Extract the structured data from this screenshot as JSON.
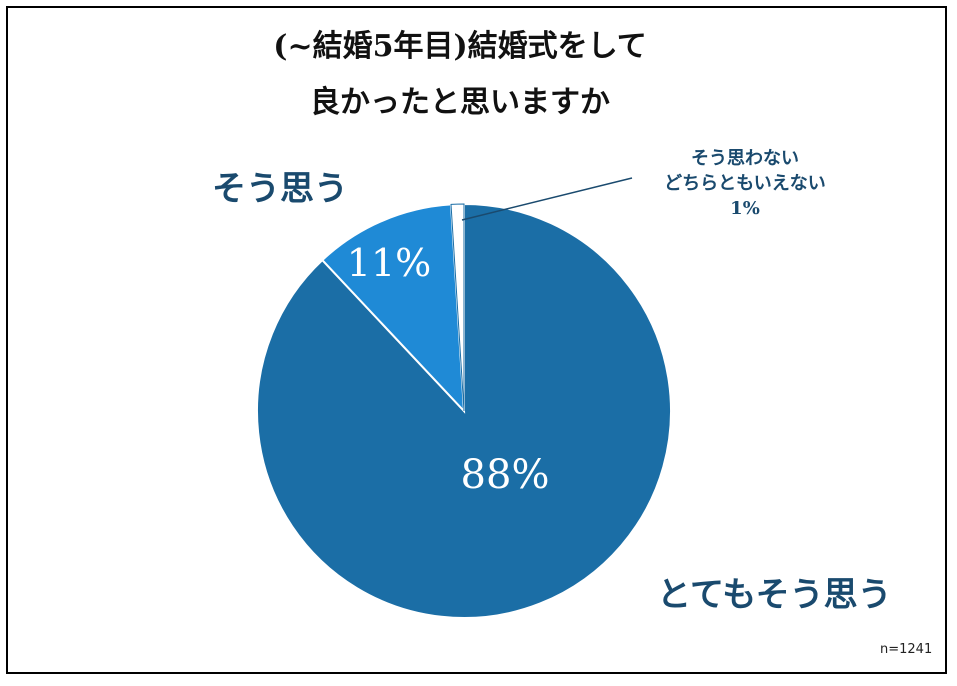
{
  "title_lines": [
    "(~結婚5年目)結婚式をして",
    "良かったと思いますか"
  ],
  "note": "n=1241",
  "chart_data": {
    "type": "pie",
    "slices": [
      {
        "name": "とてもそう思う",
        "value": 88,
        "label": "88%",
        "color": "#1b6ea6"
      },
      {
        "name": "そう思わない\nどちらともいえない",
        "value": 1,
        "label": "1%",
        "color": "#ffffff"
      },
      {
        "name": "そう思う",
        "value": 11,
        "label": "11%",
        "color": "#1f8ad6"
      }
    ],
    "slice_order_clockwise_from_top": [
      "とてもそう思う",
      "そう思う",
      "そう思わない\nどちらともいえない"
    ],
    "category_labels": {
      "totemo": "とてもそう思う",
      "soomou": "そう思う",
      "other_line1": "そう思わない",
      "other_line2": "どちらともいえない",
      "other_pct": "1%"
    }
  }
}
